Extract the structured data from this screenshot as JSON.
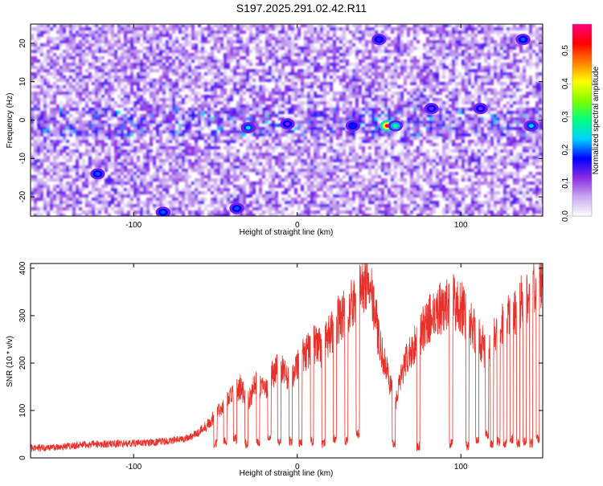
{
  "title": "S197.2025.291.02.42.R11",
  "chart_data": [
    {
      "type": "heatmap",
      "xlabel": "Height of straight line (km)",
      "ylabel": "Frequency (Hz)",
      "xlim": [
        -163,
        150
      ],
      "ylim": [
        -25,
        25
      ],
      "xticks": [
        -100,
        0,
        100
      ],
      "yticks": [
        -20,
        -10,
        0,
        10,
        20
      ],
      "colorbar": {
        "label": "Normalized spectral amplitude",
        "range": [
          0,
          0.58
        ],
        "ticks": [
          0.0,
          0.1,
          0.2,
          0.3,
          0.4,
          0.5
        ],
        "colors": [
          "#ffffff",
          "#c9a8f0",
          "#8a2be2",
          "#0000ff",
          "#00d0ff",
          "#00ff80",
          "#80ff00",
          "#ffff00",
          "#ff8000",
          "#ff0000",
          "#ff0080"
        ]
      },
      "hotspots": [
        {
          "x": 55,
          "y": -1.5,
          "value": 0.55
        },
        {
          "x": 60,
          "y": -1.5,
          "value": 0.3
        },
        {
          "x": -30,
          "y": -2,
          "value": 0.25
        },
        {
          "x": 143,
          "y": -1.5,
          "value": 0.25
        },
        {
          "x": -122,
          "y": -14,
          "value": 0.2
        },
        {
          "x": -82,
          "y": -24,
          "value": 0.2
        },
        {
          "x": -37,
          "y": -23,
          "value": 0.2
        },
        {
          "x": 138,
          "y": 21,
          "value": 0.2
        },
        {
          "x": 50,
          "y": 21,
          "value": 0.15
        },
        {
          "x": 34,
          "y": -1.5,
          "value": 0.18
        },
        {
          "x": 82,
          "y": 3,
          "value": 0.12
        },
        {
          "x": -6,
          "y": -1,
          "value": 0.12
        },
        {
          "x": 112,
          "y": 3,
          "value": 0.12
        }
      ]
    },
    {
      "type": "line",
      "xlabel": "Height of straight line (km)",
      "ylabel": "SNR (10 * v/v)",
      "xlim": [
        -163,
        150
      ],
      "ylim": [
        0,
        410
      ],
      "xticks": [
        -100,
        0,
        100
      ],
      "yticks": [
        0,
        100,
        200,
        300,
        400
      ],
      "series": [
        {
          "color": "#e8312a",
          "x": [
            -163,
            -150,
            -130,
            -110,
            -90,
            -80,
            -70,
            -65,
            -60,
            -55,
            -50,
            -45,
            -40,
            -35,
            -30,
            -25,
            -20,
            -15,
            -10,
            -5,
            0,
            5,
            10,
            15,
            20,
            25,
            30,
            35,
            40,
            43,
            45,
            48,
            50,
            55,
            58,
            60,
            62,
            65,
            70,
            75,
            80,
            85,
            90,
            95,
            100,
            105,
            110,
            113,
            116,
            120,
            125,
            130,
            135,
            140,
            145,
            150
          ],
          "y": [
            20,
            22,
            28,
            30,
            32,
            35,
            40,
            45,
            55,
            70,
            90,
            110,
            130,
            150,
            120,
            160,
            140,
            180,
            190,
            160,
            200,
            220,
            240,
            230,
            260,
            290,
            310,
            330,
            360,
            380,
            365,
            300,
            240,
            180,
            140,
            120,
            150,
            190,
            230,
            260,
            290,
            310,
            320,
            330,
            320,
            290,
            260,
            240,
            220,
            250,
            280,
            300,
            320,
            340,
            360,
            380
          ]
        }
      ],
      "dips": [
        {
          "x": -50,
          "y": 20
        },
        {
          "x": -44,
          "y": 25
        },
        {
          "x": -38,
          "y": 30
        },
        {
          "x": -31,
          "y": 20
        },
        {
          "x": -24,
          "y": 25
        },
        {
          "x": -17,
          "y": 30
        },
        {
          "x": -11,
          "y": 20
        },
        {
          "x": -4,
          "y": 25
        },
        {
          "x": 2,
          "y": 20
        },
        {
          "x": 9,
          "y": 25
        },
        {
          "x": 16,
          "y": 20
        },
        {
          "x": 23,
          "y": 30
        },
        {
          "x": 30,
          "y": 25
        },
        {
          "x": 37,
          "y": 40
        },
        {
          "x": 59,
          "y": 20
        },
        {
          "x": 74,
          "y": 15
        },
        {
          "x": 94,
          "y": 20
        },
        {
          "x": 104,
          "y": 15
        },
        {
          "x": 110,
          "y": 25
        },
        {
          "x": 116,
          "y": 40
        },
        {
          "x": 119,
          "y": 20
        },
        {
          "x": 123,
          "y": 25
        },
        {
          "x": 127,
          "y": 20
        },
        {
          "x": 131,
          "y": 30
        },
        {
          "x": 135,
          "y": 20
        },
        {
          "x": 139,
          "y": 25
        },
        {
          "x": 143,
          "y": 20
        },
        {
          "x": 147,
          "y": 30
        }
      ]
    }
  ]
}
